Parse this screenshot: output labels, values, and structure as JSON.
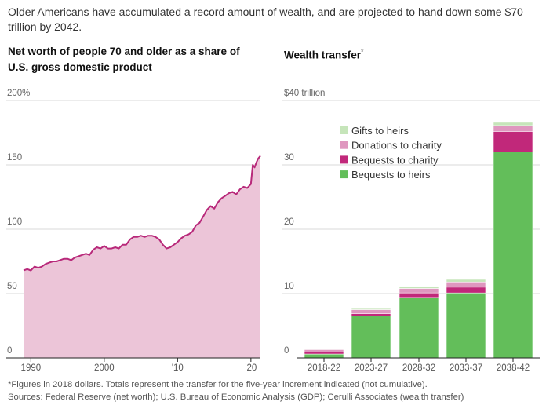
{
  "headline": "Older Americans have accumulated a record amount of wealth, and are projected to hand down some $70 trillion by 2042.",
  "footnote": "*Figures in 2018 dollars. Totals represent the transfer for the five-year increment indicated (not cumulative).",
  "sources": "Sources: Federal Reserve (net worth); U.S. Bureau of Economic Analysis (GDP); Cerulli Associates (wealth transfer)",
  "chart_data": [
    {
      "type": "area",
      "title": "Net worth of people 70 and older as a share of U.S. gross domestic product",
      "y_ticks": [
        "200%",
        "150",
        "100",
        "50",
        "0"
      ],
      "y_tick_values": [
        200,
        150,
        100,
        50,
        0
      ],
      "x_ticks": [
        "1990",
        "2000",
        "'10",
        "'20"
      ],
      "x_tick_values": [
        1990,
        2000,
        2010,
        2020
      ],
      "xlim": [
        1989,
        2021.3
      ],
      "ylim": [
        0,
        200
      ],
      "grid": true,
      "colors": {
        "line": "#b8297a",
        "fill": "#ecc5d8"
      },
      "x": [
        1989.0,
        1989.5,
        1990.0,
        1990.5,
        1991.0,
        1991.5,
        1992.0,
        1992.5,
        1993.0,
        1993.5,
        1994.0,
        1994.5,
        1995.0,
        1995.5,
        1996.0,
        1996.5,
        1997.0,
        1997.5,
        1998.0,
        1998.5,
        1999.0,
        1999.5,
        2000.0,
        2000.5,
        2001.0,
        2001.5,
        2002.0,
        2002.5,
        2003.0,
        2003.5,
        2004.0,
        2004.5,
        2005.0,
        2005.5,
        2006.0,
        2006.5,
        2007.0,
        2007.5,
        2008.0,
        2008.5,
        2009.0,
        2009.5,
        2010.0,
        2010.5,
        2011.0,
        2011.5,
        2012.0,
        2012.5,
        2013.0,
        2013.5,
        2014.0,
        2014.5,
        2015.0,
        2015.5,
        2016.0,
        2016.5,
        2017.0,
        2017.5,
        2018.0,
        2018.5,
        2019.0,
        2019.5,
        2020.0,
        2020.25,
        2020.5,
        2020.75,
        2021.0,
        2021.3
      ],
      "values": [
        68,
        69,
        68,
        71,
        70,
        71,
        73,
        74,
        75,
        75,
        76,
        77,
        77,
        76,
        78,
        79,
        80,
        81,
        80,
        84,
        86,
        85,
        87,
        85,
        85,
        86,
        85,
        88,
        88,
        92,
        94,
        94,
        95,
        94,
        95,
        95,
        94,
        92,
        88,
        85,
        86,
        88,
        90,
        93,
        95,
        96,
        98,
        103,
        105,
        110,
        115,
        118,
        116,
        121,
        124,
        126,
        128,
        129,
        127,
        131,
        133,
        132,
        135,
        150,
        148,
        152,
        155,
        157
      ]
    },
    {
      "type": "bar",
      "stacked": true,
      "title": "Wealth transfer",
      "title_marker": "*",
      "categories": [
        "2018-22",
        "2023-27",
        "2028-32",
        "2033-37",
        "2038-42"
      ],
      "y_ticks": [
        "$40 trillion",
        "30",
        "20",
        "10",
        "0"
      ],
      "y_tick_values": [
        40,
        30,
        20,
        10,
        0
      ],
      "ylim": [
        0,
        40
      ],
      "grid": true,
      "legend_position": "top-left",
      "series": [
        {
          "name": "Bequests to heirs",
          "color": "#63be5a",
          "values": [
            0.6,
            6.5,
            9.4,
            10.1,
            32.0
          ]
        },
        {
          "name": "Bequests to charity",
          "color": "#c1287a",
          "values": [
            0.3,
            0.4,
            0.7,
            0.9,
            3.2
          ]
        },
        {
          "name": "Donations to charity",
          "color": "#df97bf",
          "values": [
            0.4,
            0.6,
            0.7,
            0.8,
            0.9
          ]
        },
        {
          "name": "Gifts to heirs",
          "color": "#c6e5ba",
          "values": [
            0.2,
            0.3,
            0.3,
            0.4,
            0.5
          ]
        }
      ]
    }
  ]
}
